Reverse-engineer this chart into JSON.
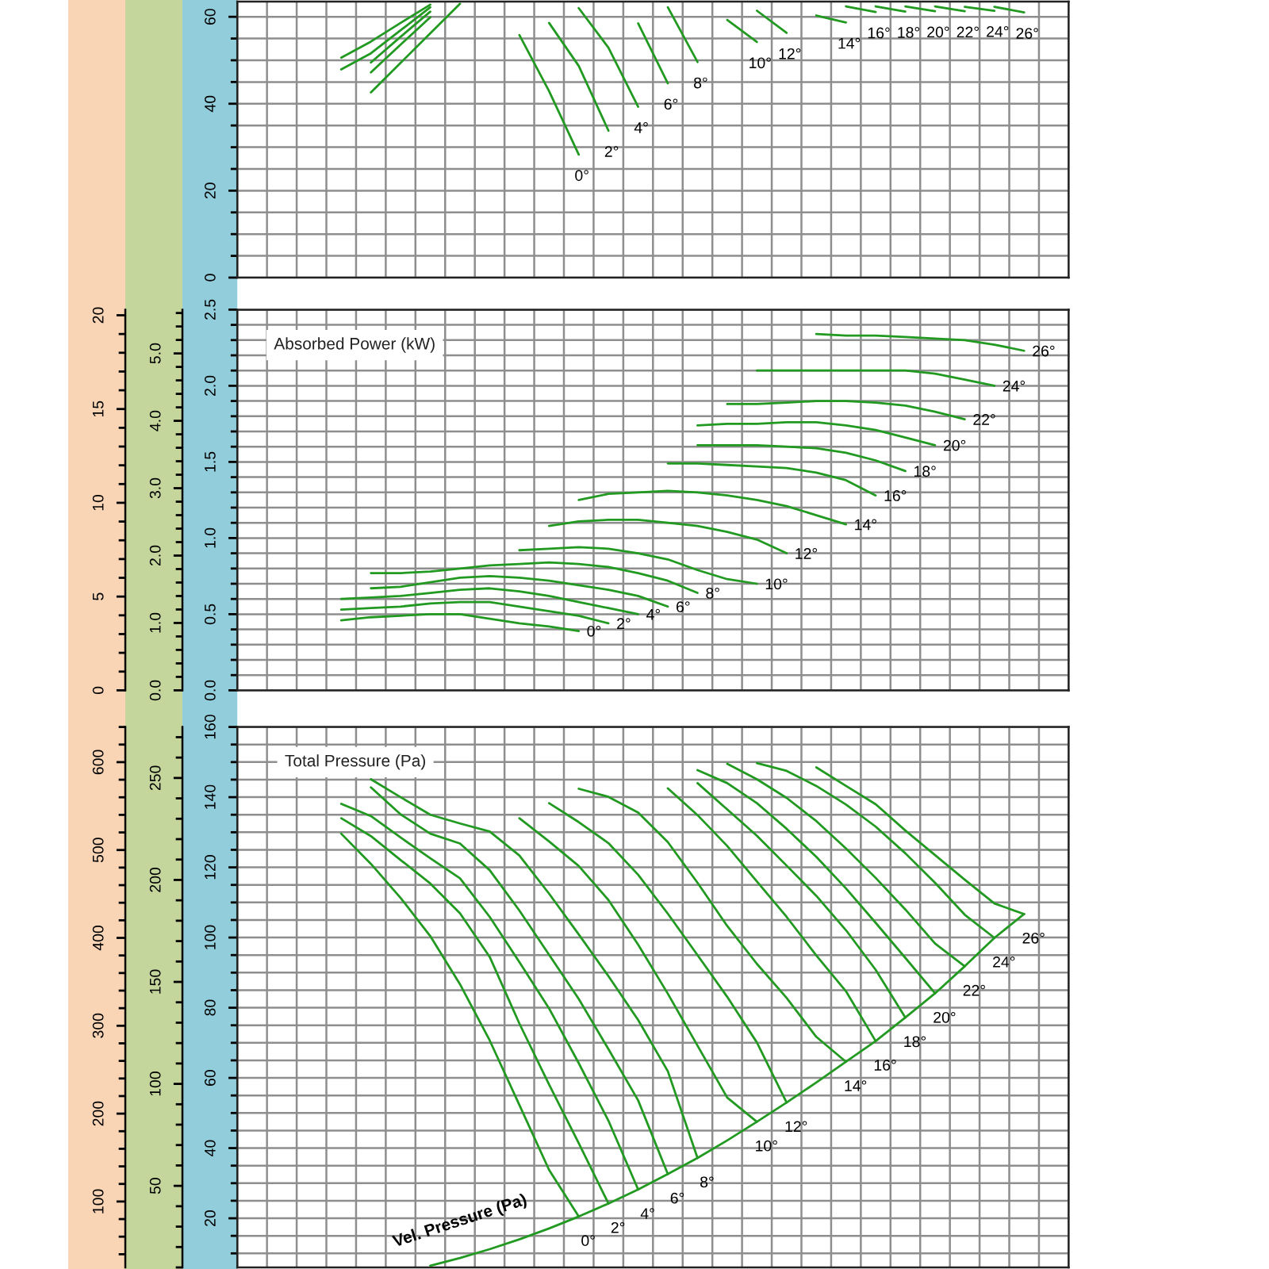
{
  "chart_data": [
    {
      "type": "line",
      "tick_labels": "y",
      "grid": true,
      "categories": [
        null,
        null,
        null,
        null,
        null,
        null,
        null,
        null,
        null,
        null,
        null,
        null,
        null,
        null,
        null,
        null,
        null,
        null,
        null,
        null,
        null,
        null,
        null,
        null,
        null,
        null,
        null,
        null
      ],
      "ylim": [
        0,
        63.5
      ],
      "yticks": [
        0,
        {
          "value": 5,
          "label": null
        },
        {
          "value": 10,
          "label": null
        },
        {
          "value": 15,
          "label": null
        },
        20,
        {
          "value": 25,
          "label": null
        },
        {
          "value": 30,
          "label": null
        },
        {
          "value": 35,
          "label": null
        },
        40,
        {
          "value": 45,
          "label": null
        },
        {
          "value": 50,
          "label": null
        },
        {
          "value": 55,
          "label": null
        },
        60
      ],
      "series": [
        {
          "name": "0°",
          "color": "#229a22",
          "values": [
            null,
            null,
            null,
            50.6,
            54.3,
            58.6,
            62.8,
            null,
            null,
            55.8,
            42.9,
            28.3,
            null,
            null,
            null,
            null,
            null,
            null,
            null,
            null,
            null,
            null,
            null,
            null,
            null,
            null,
            null,
            null
          ]
        },
        {
          "name": "2°",
          "color": "#229a22",
          "values": [
            null,
            null,
            null,
            47.9,
            51.6,
            56.9,
            62.2,
            null,
            null,
            null,
            58.6,
            48.7,
            33.8,
            null,
            null,
            null,
            null,
            null,
            null,
            null,
            null,
            null,
            null,
            null,
            null,
            null,
            null,
            null
          ]
        },
        {
          "name": "4°",
          "color": "#229a22",
          "values": [
            null,
            null,
            null,
            null,
            49.5,
            55.4,
            61.2,
            null,
            null,
            null,
            null,
            62.0,
            52.9,
            39.3,
            null,
            null,
            null,
            null,
            null,
            null,
            null,
            null,
            null,
            null,
            null,
            null,
            null,
            null
          ]
        },
        {
          "name": "6°",
          "color": "#229a22",
          "values": [
            null,
            null,
            null,
            null,
            47.2,
            53.6,
            59.9,
            null,
            null,
            null,
            null,
            null,
            null,
            58.5,
            44.7,
            null,
            null,
            null,
            null,
            null,
            null,
            null,
            null,
            null,
            null,
            null,
            null,
            null
          ]
        },
        {
          "name": "8°",
          "color": "#229a22",
          "values": [
            null,
            null,
            null,
            null,
            42.6,
            49.4,
            56.2,
            63.0,
            null,
            null,
            null,
            null,
            null,
            null,
            62.2,
            49.6,
            null,
            null,
            null,
            null,
            null,
            null,
            null,
            null,
            null,
            null,
            null,
            null
          ]
        },
        {
          "name": "10°",
          "color": "#229a22",
          "values": [
            null,
            null,
            null,
            null,
            null,
            null,
            null,
            null,
            null,
            null,
            null,
            null,
            null,
            null,
            null,
            null,
            59.3,
            54.2,
            null,
            null,
            null,
            null,
            null,
            null,
            null,
            null,
            null,
            null
          ]
        },
        {
          "name": "12°",
          "color": "#229a22",
          "values": [
            null,
            null,
            null,
            null,
            null,
            null,
            null,
            null,
            null,
            null,
            null,
            null,
            null,
            null,
            null,
            null,
            null,
            61.4,
            56.3,
            null,
            null,
            null,
            null,
            null,
            null,
            null,
            null,
            null
          ]
        },
        {
          "name": "14°",
          "color": "#229a22",
          "values": [
            null,
            null,
            null,
            null,
            null,
            null,
            null,
            null,
            null,
            null,
            null,
            null,
            null,
            null,
            null,
            null,
            null,
            null,
            null,
            60.3,
            58.7,
            null,
            null,
            null,
            null,
            null,
            null,
            null
          ]
        },
        {
          "name": "16°",
          "color": "#229a22",
          "values": [
            null,
            null,
            null,
            null,
            null,
            null,
            null,
            null,
            null,
            null,
            null,
            null,
            null,
            null,
            null,
            null,
            null,
            null,
            null,
            null,
            62.4,
            61.1,
            null,
            null,
            null,
            null,
            null,
            null
          ]
        },
        {
          "name": "18°",
          "color": "#229a22",
          "values": [
            null,
            null,
            null,
            null,
            null,
            null,
            null,
            null,
            null,
            null,
            null,
            null,
            null,
            null,
            null,
            null,
            null,
            null,
            null,
            null,
            null,
            62.4,
            61.2,
            null,
            null,
            null,
            null,
            null
          ]
        },
        {
          "name": "20°",
          "color": "#229a22",
          "values": [
            null,
            null,
            null,
            null,
            null,
            null,
            null,
            null,
            null,
            null,
            null,
            null,
            null,
            null,
            null,
            null,
            null,
            null,
            null,
            null,
            null,
            null,
            62.4,
            61.3,
            null,
            null,
            null,
            null
          ]
        },
        {
          "name": "22°",
          "color": "#229a22",
          "values": [
            null,
            null,
            null,
            null,
            null,
            null,
            null,
            null,
            null,
            null,
            null,
            null,
            null,
            null,
            null,
            null,
            null,
            null,
            null,
            null,
            null,
            null,
            null,
            62.4,
            61.3,
            null,
            null,
            null
          ]
        },
        {
          "name": "24°",
          "color": "#229a22",
          "values": [
            null,
            null,
            null,
            null,
            null,
            null,
            null,
            null,
            null,
            null,
            null,
            null,
            null,
            null,
            null,
            null,
            null,
            null,
            null,
            null,
            null,
            null,
            null,
            null,
            62.3,
            61.4,
            null,
            null
          ]
        },
        {
          "name": "26°",
          "color": "#229a22",
          "values": [
            null,
            null,
            null,
            null,
            null,
            null,
            null,
            null,
            null,
            null,
            null,
            null,
            null,
            null,
            null,
            null,
            null,
            null,
            null,
            null,
            null,
            null,
            null,
            null,
            null,
            62.3,
            61.0,
            null
          ]
        }
      ]
    },
    {
      "type": "line",
      "title": "Absorbed Power (kW)",
      "tick_labels": "y",
      "grid": true,
      "categories": [
        null,
        null,
        null,
        null,
        null,
        null,
        null,
        null,
        null,
        null,
        null,
        null,
        null,
        null,
        null,
        null,
        null,
        null,
        null,
        null,
        null,
        null,
        null,
        null,
        null,
        null,
        null,
        null
      ],
      "ylim": [
        0,
        2.5
      ],
      "yticks": [
        {
          "value": 0,
          "label": "0.0"
        },
        {
          "value": 0.1,
          "label": null
        },
        {
          "value": 0.2,
          "label": null
        },
        {
          "value": 0.3,
          "label": null
        },
        {
          "value": 0.4,
          "label": null
        },
        {
          "value": 0.5,
          "label": "0.5"
        },
        {
          "value": 0.6,
          "label": null
        },
        {
          "value": 0.7,
          "label": null
        },
        {
          "value": 0.8,
          "label": null
        },
        {
          "value": 0.9,
          "label": null
        },
        {
          "value": 1,
          "label": "1.0"
        },
        {
          "value": 1.1,
          "label": null
        },
        {
          "value": 1.2,
          "label": null
        },
        {
          "value": 1.3,
          "label": null
        },
        {
          "value": 1.4,
          "label": null
        },
        {
          "value": 1.5,
          "label": "1.5"
        },
        {
          "value": 1.6,
          "label": null
        },
        {
          "value": 1.7,
          "label": null
        },
        {
          "value": 1.8,
          "label": null
        },
        {
          "value": 1.9,
          "label": null
        },
        {
          "value": 2,
          "label": "2.0"
        },
        {
          "value": 2.1,
          "label": null
        },
        {
          "value": 2.2,
          "label": null
        },
        {
          "value": 2.3,
          "label": null
        },
        {
          "value": 2.4,
          "label": null
        },
        {
          "value": 2.5,
          "label": "2.5"
        }
      ],
      "y2lim": [
        0,
        5.65
      ],
      "y2ticks": [
        {
          "value": 0,
          "label": "0.0"
        },
        {
          "value": 1,
          "label": "1.0"
        },
        {
          "value": 2,
          "label": "2.0"
        },
        {
          "value": 3,
          "label": "3.0"
        },
        {
          "value": 4,
          "label": "4.0"
        },
        {
          "value": 5,
          "label": "5.0"
        }
      ],
      "y3lim": [
        0,
        20.3
      ],
      "y3ticks": [
        0,
        5,
        10,
        15,
        20
      ],
      "series": [
        {
          "name": "0°",
          "color": "#229a22",
          "values": [
            null,
            null,
            null,
            0.46,
            0.48,
            0.49,
            0.5,
            0.5,
            0.47,
            0.44,
            0.42,
            0.39,
            null,
            null,
            null,
            null,
            null,
            null,
            null,
            null,
            null,
            null,
            null,
            null,
            null,
            null,
            null,
            null
          ]
        },
        {
          "name": "2°",
          "color": "#229a22",
          "values": [
            null,
            null,
            null,
            0.53,
            0.54,
            0.55,
            0.57,
            0.58,
            0.58,
            0.55,
            0.52,
            0.49,
            0.44,
            null,
            null,
            null,
            null,
            null,
            null,
            null,
            null,
            null,
            null,
            null,
            null,
            null,
            null,
            null
          ]
        },
        {
          "name": "4°",
          "color": "#229a22",
          "values": [
            null,
            null,
            null,
            0.6,
            0.61,
            0.62,
            0.64,
            0.66,
            0.67,
            0.65,
            0.62,
            0.58,
            0.54,
            0.5,
            null,
            null,
            null,
            null,
            null,
            null,
            null,
            null,
            null,
            null,
            null,
            null,
            null,
            null
          ]
        },
        {
          "name": "6°",
          "color": "#229a22",
          "values": [
            null,
            null,
            null,
            null,
            0.67,
            0.68,
            0.71,
            0.74,
            0.75,
            0.74,
            0.72,
            0.69,
            0.66,
            0.62,
            0.55,
            null,
            null,
            null,
            null,
            null,
            null,
            null,
            null,
            null,
            null,
            null,
            null,
            null
          ]
        },
        {
          "name": "8°",
          "color": "#229a22",
          "values": [
            null,
            null,
            null,
            null,
            0.77,
            0.77,
            0.78,
            0.8,
            0.82,
            0.83,
            0.84,
            0.83,
            0.81,
            0.77,
            0.72,
            0.64,
            null,
            null,
            null,
            null,
            null,
            null,
            null,
            null,
            null,
            null,
            null,
            null
          ]
        },
        {
          "name": "10°",
          "color": "#229a22",
          "values": [
            null,
            null,
            null,
            null,
            null,
            null,
            null,
            null,
            null,
            0.92,
            0.93,
            0.94,
            0.93,
            0.9,
            0.86,
            0.79,
            0.73,
            0.7,
            null,
            null,
            null,
            null,
            null,
            null,
            null,
            null,
            null,
            null
          ]
        },
        {
          "name": "12°",
          "color": "#229a22",
          "values": [
            null,
            null,
            null,
            null,
            null,
            null,
            null,
            null,
            null,
            null,
            1.08,
            1.11,
            1.12,
            1.12,
            1.1,
            1.08,
            1.04,
            0.99,
            0.9,
            null,
            null,
            null,
            null,
            null,
            null,
            null,
            null,
            null
          ]
        },
        {
          "name": "14°",
          "color": "#229a22",
          "values": [
            null,
            null,
            null,
            null,
            null,
            null,
            null,
            null,
            null,
            null,
            null,
            1.25,
            1.29,
            1.3,
            1.31,
            1.3,
            1.28,
            1.25,
            1.21,
            1.15,
            1.09,
            null,
            null,
            null,
            null,
            null,
            null,
            null
          ]
        },
        {
          "name": "16°",
          "color": "#229a22",
          "values": [
            null,
            null,
            null,
            null,
            null,
            null,
            null,
            null,
            null,
            null,
            null,
            null,
            null,
            null,
            1.49,
            1.49,
            1.48,
            1.47,
            1.46,
            1.43,
            1.38,
            1.28,
            null,
            null,
            null,
            null,
            null,
            null
          ]
        },
        {
          "name": "18°",
          "color": "#229a22",
          "values": [
            null,
            null,
            null,
            null,
            null,
            null,
            null,
            null,
            null,
            null,
            null,
            null,
            null,
            null,
            null,
            1.61,
            1.61,
            1.61,
            1.6,
            1.59,
            1.56,
            1.51,
            1.44,
            null,
            null,
            null,
            null,
            null
          ]
        },
        {
          "name": "20°",
          "color": "#229a22",
          "values": [
            null,
            null,
            null,
            null,
            null,
            null,
            null,
            null,
            null,
            null,
            null,
            null,
            null,
            null,
            null,
            1.74,
            1.75,
            1.75,
            1.76,
            1.76,
            1.74,
            1.71,
            1.66,
            1.61,
            null,
            null,
            null,
            null
          ]
        },
        {
          "name": "22°",
          "color": "#229a22",
          "values": [
            null,
            null,
            null,
            null,
            null,
            null,
            null,
            null,
            null,
            null,
            null,
            null,
            null,
            null,
            null,
            null,
            1.88,
            1.88,
            1.89,
            1.9,
            1.9,
            1.89,
            1.87,
            1.83,
            1.78,
            null,
            null,
            null
          ]
        },
        {
          "name": "24°",
          "color": "#229a22",
          "values": [
            null,
            null,
            null,
            null,
            null,
            null,
            null,
            null,
            null,
            null,
            null,
            null,
            null,
            null,
            null,
            null,
            null,
            2.1,
            2.1,
            2.1,
            2.1,
            2.1,
            2.1,
            2.08,
            2.04,
            2.0,
            null,
            null
          ]
        },
        {
          "name": "26°",
          "color": "#229a22",
          "values": [
            null,
            null,
            null,
            null,
            null,
            null,
            null,
            null,
            null,
            null,
            null,
            null,
            null,
            null,
            null,
            null,
            null,
            null,
            null,
            2.34,
            2.33,
            2.33,
            2.32,
            2.31,
            2.3,
            2.27,
            2.23,
            null
          ]
        }
      ]
    },
    {
      "type": "line",
      "title": "Total Pressure (Pa)",
      "annotations": [
        "Vel. Pressure (Pa)"
      ],
      "tick_labels": "y",
      "grid": true,
      "categories": [
        null,
        null,
        null,
        null,
        null,
        null,
        null,
        null,
        null,
        null,
        null,
        null,
        null,
        null,
        null,
        null,
        null,
        null,
        null,
        null,
        null,
        null,
        null,
        null,
        null,
        null,
        null,
        null
      ],
      "ylim": [
        6,
        160
      ],
      "yticks": [
        {
          "value": 10,
          "label": null
        },
        {
          "value": 15,
          "label": null
        },
        20,
        {
          "value": 25,
          "label": null
        },
        {
          "value": 30,
          "label": null
        },
        {
          "value": 35,
          "label": null
        },
        40,
        {
          "value": 45,
          "label": null
        },
        {
          "value": 50,
          "label": null
        },
        {
          "value": 55,
          "label": null
        },
        60,
        {
          "value": 65,
          "label": null
        },
        {
          "value": 70,
          "label": null
        },
        {
          "value": 75,
          "label": null
        },
        80,
        {
          "value": 85,
          "label": null
        },
        {
          "value": 90,
          "label": null
        },
        {
          "value": 95,
          "label": null
        },
        100,
        {
          "value": 105,
          "label": null
        },
        {
          "value": 110,
          "label": null
        },
        {
          "value": 115,
          "label": null
        },
        120,
        {
          "value": 125,
          "label": null
        },
        {
          "value": 130,
          "label": null
        },
        {
          "value": 135,
          "label": null
        },
        140,
        {
          "value": 145,
          "label": null
        },
        {
          "value": 150,
          "label": null
        },
        {
          "value": 155,
          "label": null
        },
        160
      ],
      "y2lim": [
        10,
        275
      ],
      "y2ticks": [
        50,
        100,
        150,
        200,
        250
      ],
      "y3lim": [
        25,
        640
      ],
      "y3ticks": [
        100,
        200,
        300,
        400,
        500,
        600
      ],
      "series": [
        {
          "name": "0°",
          "color": "#229a22",
          "values": [
            null,
            null,
            null,
            129.6,
            121.0,
            111.3,
            100.4,
            86.7,
            70.7,
            52.3,
            33.8,
            20.5,
            null,
            null,
            null,
            null,
            null,
            null,
            null,
            null,
            null,
            null,
            null,
            null,
            null,
            null,
            null,
            null
          ]
        },
        {
          "name": "2°",
          "color": "#229a22",
          "values": [
            null,
            null,
            null,
            134.0,
            128.9,
            122.1,
            115.4,
            106.9,
            94.5,
            75.5,
            58.1,
            41.4,
            24.2,
            null,
            null,
            null,
            null,
            null,
            null,
            null,
            null,
            null,
            null,
            null,
            null,
            null,
            null,
            null
          ]
        },
        {
          "name": "4°",
          "color": "#229a22",
          "values": [
            null,
            null,
            null,
            138.1,
            134.6,
            128.5,
            122.6,
            116.9,
            105.9,
            93.0,
            79.8,
            64.2,
            47.8,
            28.2,
            null,
            null,
            null,
            null,
            null,
            null,
            null,
            null,
            null,
            null,
            null,
            null,
            null,
            null
          ]
        },
        {
          "name": "6°",
          "color": "#229a22",
          "values": [
            null,
            null,
            null,
            null,
            142.8,
            135.1,
            129.6,
            126.8,
            119.2,
            107.7,
            95.1,
            82.5,
            68.2,
            53.6,
            32.6,
            null,
            null,
            null,
            null,
            null,
            null,
            null,
            null,
            null,
            null,
            null,
            null,
            null
          ]
        },
        {
          "name": "8°",
          "color": "#229a22",
          "values": [
            null,
            null,
            null,
            null,
            145.1,
            140.0,
            135.0,
            132.5,
            130.2,
            123.4,
            112.5,
            100.9,
            89.0,
            76.5,
            61.9,
            37.2,
            null,
            null,
            null,
            null,
            null,
            null,
            null,
            null,
            null,
            null,
            null,
            null
          ]
        },
        {
          "name": "10°",
          "color": "#229a22",
          "values": [
            null,
            null,
            null,
            null,
            null,
            null,
            null,
            null,
            null,
            134.0,
            127.4,
            120.4,
            110.7,
            98.0,
            84.0,
            69.2,
            54.4,
            47.5,
            null,
            null,
            null,
            null,
            null,
            null,
            null,
            null,
            null,
            null
          ]
        },
        {
          "name": "12°",
          "color": "#229a22",
          "values": [
            null,
            null,
            null,
            null,
            null,
            null,
            null,
            null,
            null,
            null,
            138.3,
            132.9,
            126.9,
            117.9,
            106.8,
            95.0,
            83.1,
            70.1,
            53.0,
            null,
            null,
            null,
            null,
            null,
            null,
            null,
            null,
            null
          ]
        },
        {
          "name": "14°",
          "color": "#229a22",
          "values": [
            null,
            null,
            null,
            null,
            null,
            null,
            null,
            null,
            null,
            null,
            null,
            142.4,
            140.1,
            135.6,
            127.2,
            115.6,
            103.3,
            92.5,
            82.8,
            71.7,
            64.6,
            null,
            null,
            null,
            null,
            null,
            null,
            null
          ]
        },
        {
          "name": "16°",
          "color": "#229a22",
          "values": [
            null,
            null,
            null,
            null,
            null,
            null,
            null,
            null,
            null,
            null,
            null,
            null,
            null,
            null,
            142.5,
            134.9,
            126.1,
            116.0,
            105.9,
            94.9,
            84.7,
            70.5,
            null,
            null,
            null,
            null,
            null,
            null
          ]
        },
        {
          "name": "18°",
          "color": "#229a22",
          "values": [
            null,
            null,
            null,
            null,
            null,
            null,
            null,
            null,
            null,
            null,
            null,
            null,
            null,
            null,
            null,
            144.0,
            136.5,
            129.0,
            120.5,
            111.9,
            102.1,
            90.8,
            77.2,
            null,
            null,
            null,
            null,
            null
          ]
        },
        {
          "name": "20°",
          "color": "#229a22",
          "values": [
            null,
            null,
            null,
            null,
            null,
            null,
            null,
            null,
            null,
            null,
            null,
            null,
            null,
            null,
            null,
            147.7,
            144.0,
            138.3,
            131.0,
            123.0,
            114.0,
            104.2,
            94.2,
            84.1,
            null,
            null,
            null,
            null
          ]
        },
        {
          "name": "22°",
          "color": "#229a22",
          "values": [
            null,
            null,
            null,
            null,
            null,
            null,
            null,
            null,
            null,
            null,
            null,
            null,
            null,
            null,
            null,
            null,
            149.5,
            145.1,
            139.8,
            133.2,
            125.4,
            117.0,
            108.0,
            98.3,
            91.8,
            null,
            null,
            null
          ]
        },
        {
          "name": "24°",
          "color": "#229a22",
          "values": [
            null,
            null,
            null,
            null,
            null,
            null,
            null,
            null,
            null,
            null,
            null,
            null,
            null,
            null,
            null,
            null,
            null,
            149.7,
            147.5,
            143.2,
            137.9,
            131.6,
            124.0,
            115.6,
            106.5,
            99.9,
            null,
            null
          ]
        },
        {
          "name": "26°",
          "color": "#229a22",
          "values": [
            null,
            null,
            null,
            null,
            null,
            null,
            null,
            null,
            null,
            null,
            null,
            null,
            null,
            null,
            null,
            null,
            null,
            null,
            null,
            148.5,
            143.2,
            138.0,
            130.5,
            123.5,
            116.5,
            109.7,
            106.7,
            null
          ]
        },
        {
          "color": "#229a22",
          "values": [
            null,
            null,
            null,
            null,
            null,
            null,
            6.5,
            8.7,
            11.2,
            14.0,
            17.1,
            20.5,
            24.2,
            28.2,
            32.6,
            37.2,
            42.2,
            47.5,
            53.0,
            58.7,
            64.6,
            70.5,
            77.2,
            84.1,
            91.8,
            99.9,
            106.7,
            null
          ]
        }
      ]
    }
  ]
}
